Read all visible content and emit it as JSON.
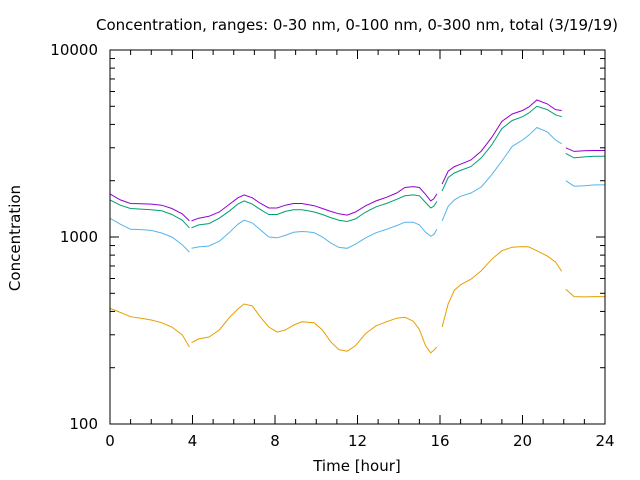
{
  "chart_data": {
    "type": "line",
    "title": "Concentration, ranges: 0-30 nm, 0-100 nm, 0-300 nm, total (3/19/19)",
    "xlabel": "Time [hour]",
    "ylabel": "Concentration",
    "xlim": [
      0,
      24
    ],
    "ylim": [
      100,
      10000
    ],
    "yscale": "log",
    "grid": false,
    "legend": "none",
    "xticks": [
      0,
      4,
      8,
      12,
      16,
      20,
      24
    ],
    "xtick_labels": [
      "0",
      "4",
      "8",
      "12",
      "16",
      "20",
      "24"
    ],
    "yticks": [
      100,
      1000,
      10000
    ],
    "ytick_labels": [
      "100",
      "1000",
      "10000"
    ],
    "series": [
      {
        "color": "#e69f00",
        "segments": [
          [
            [
              0,
              415
            ],
            [
              0.5,
              395
            ],
            [
              1,
              375
            ],
            [
              1.5,
              368
            ],
            [
              2,
              360
            ],
            [
              2.5,
              348
            ],
            [
              3,
              330
            ],
            [
              3.5,
              300
            ],
            [
              3.85,
              258
            ]
          ],
          [
            [
              3.95,
              272
            ],
            [
              4.3,
              285
            ],
            [
              4.8,
              292
            ],
            [
              5.3,
              318
            ],
            [
              5.8,
              372
            ],
            [
              6.2,
              412
            ],
            [
              6.5,
              438
            ],
            [
              6.9,
              428
            ],
            [
              7.3,
              372
            ],
            [
              7.7,
              330
            ],
            [
              8.1,
              310
            ],
            [
              8.5,
              318
            ],
            [
              8.9,
              338
            ],
            [
              9.3,
              352
            ],
            [
              9.6,
              350
            ],
            [
              9.9,
              348
            ],
            [
              10.3,
              318
            ],
            [
              10.7,
              275
            ],
            [
              11.1,
              250
            ],
            [
              11.5,
              245
            ],
            [
              11.9,
              262
            ],
            [
              12.4,
              305
            ],
            [
              12.9,
              335
            ],
            [
              13.4,
              352
            ],
            [
              13.9,
              368
            ],
            [
              14.3,
              372
            ],
            [
              14.7,
              355
            ],
            [
              15.0,
              320
            ],
            [
              15.3,
              262
            ],
            [
              15.55,
              240
            ],
            [
              15.7,
              248
            ],
            [
              15.85,
              258
            ]
          ],
          [
            [
              16.1,
              330
            ],
            [
              16.4,
              440
            ],
            [
              16.7,
              520
            ],
            [
              17.0,
              555
            ],
            [
              17.5,
              595
            ],
            [
              18.0,
              660
            ],
            [
              18.5,
              760
            ],
            [
              19.0,
              845
            ],
            [
              19.5,
              882
            ],
            [
              20.0,
              888
            ],
            [
              20.3,
              885
            ],
            [
              20.7,
              845
            ],
            [
              21.2,
              790
            ],
            [
              21.6,
              735
            ],
            [
              21.9,
              655
            ]
          ],
          [
            [
              22.1,
              525
            ],
            [
              22.5,
              480
            ],
            [
              23.0,
              478
            ],
            [
              23.5,
              480
            ],
            [
              24,
              480
            ]
          ]
        ]
      },
      {
        "color": "#56b4e9",
        "segments": [
          [
            [
              0,
              1260
            ],
            [
              0.5,
              1170
            ],
            [
              1,
              1100
            ],
            [
              1.5,
              1095
            ],
            [
              2,
              1085
            ],
            [
              2.5,
              1050
            ],
            [
              3,
              1000
            ],
            [
              3.5,
              910
            ],
            [
              3.85,
              830
            ]
          ],
          [
            [
              3.95,
              870
            ],
            [
              4.3,
              885
            ],
            [
              4.8,
              895
            ],
            [
              5.3,
              950
            ],
            [
              5.8,
              1060
            ],
            [
              6.2,
              1170
            ],
            [
              6.5,
              1230
            ],
            [
              6.9,
              1190
            ],
            [
              7.3,
              1090
            ],
            [
              7.7,
              1000
            ],
            [
              8.1,
              990
            ],
            [
              8.5,
              1020
            ],
            [
              8.9,
              1060
            ],
            [
              9.3,
              1070
            ],
            [
              9.6,
              1065
            ],
            [
              9.9,
              1055
            ],
            [
              10.3,
              1000
            ],
            [
              10.7,
              930
            ],
            [
              11.1,
              880
            ],
            [
              11.5,
              870
            ],
            [
              11.9,
              915
            ],
            [
              12.4,
              990
            ],
            [
              12.9,
              1055
            ],
            [
              13.4,
              1100
            ],
            [
              13.9,
              1150
            ],
            [
              14.3,
              1200
            ],
            [
              14.7,
              1200
            ],
            [
              15.0,
              1160
            ],
            [
              15.3,
              1060
            ],
            [
              15.55,
              1010
            ],
            [
              15.7,
              1030
            ],
            [
              15.85,
              1100
            ]
          ],
          [
            [
              16.1,
              1220
            ],
            [
              16.4,
              1460
            ],
            [
              16.7,
              1580
            ],
            [
              17.0,
              1650
            ],
            [
              17.5,
              1720
            ],
            [
              18.0,
              1850
            ],
            [
              18.5,
              2150
            ],
            [
              19.0,
              2550
            ],
            [
              19.5,
              3050
            ],
            [
              20.0,
              3300
            ],
            [
              20.3,
              3500
            ],
            [
              20.7,
              3850
            ],
            [
              21.2,
              3650
            ],
            [
              21.6,
              3300
            ],
            [
              21.9,
              3150
            ]
          ],
          [
            [
              22.1,
              2000
            ],
            [
              22.5,
              1870
            ],
            [
              23.0,
              1880
            ],
            [
              23.5,
              1900
            ],
            [
              24,
              1900
            ]
          ]
        ]
      },
      {
        "color": "#009e73",
        "segments": [
          [
            [
              0,
              1580
            ],
            [
              0.5,
              1480
            ],
            [
              1,
              1420
            ],
            [
              1.5,
              1410
            ],
            [
              2,
              1400
            ],
            [
              2.5,
              1380
            ],
            [
              3,
              1320
            ],
            [
              3.5,
              1230
            ],
            [
              3.85,
              1120
            ]
          ],
          [
            [
              3.95,
              1120
            ],
            [
              4.3,
              1160
            ],
            [
              4.8,
              1180
            ],
            [
              5.3,
              1260
            ],
            [
              5.8,
              1380
            ],
            [
              6.2,
              1500
            ],
            [
              6.5,
              1560
            ],
            [
              6.9,
              1500
            ],
            [
              7.3,
              1400
            ],
            [
              7.7,
              1320
            ],
            [
              8.1,
              1320
            ],
            [
              8.5,
              1370
            ],
            [
              8.9,
              1400
            ],
            [
              9.3,
              1400
            ],
            [
              9.6,
              1380
            ],
            [
              9.9,
              1360
            ],
            [
              10.3,
              1320
            ],
            [
              10.7,
              1270
            ],
            [
              11.1,
              1230
            ],
            [
              11.5,
              1210
            ],
            [
              11.9,
              1250
            ],
            [
              12.4,
              1360
            ],
            [
              12.9,
              1450
            ],
            [
              13.4,
              1510
            ],
            [
              13.9,
              1590
            ],
            [
              14.3,
              1660
            ],
            [
              14.7,
              1680
            ],
            [
              15.0,
              1660
            ],
            [
              15.3,
              1530
            ],
            [
              15.55,
              1430
            ],
            [
              15.7,
              1460
            ],
            [
              15.85,
              1550
            ]
          ],
          [
            [
              16.1,
              1760
            ],
            [
              16.4,
              2080
            ],
            [
              16.7,
              2200
            ],
            [
              17.0,
              2270
            ],
            [
              17.5,
              2380
            ],
            [
              18.0,
              2650
            ],
            [
              18.5,
              3100
            ],
            [
              19.0,
              3800
            ],
            [
              19.5,
              4200
            ],
            [
              20.0,
              4400
            ],
            [
              20.3,
              4600
            ],
            [
              20.7,
              5000
            ],
            [
              21.2,
              4800
            ],
            [
              21.6,
              4500
            ],
            [
              21.9,
              4400
            ]
          ],
          [
            [
              22.1,
              2800
            ],
            [
              22.5,
              2650
            ],
            [
              23.0,
              2680
            ],
            [
              23.5,
              2700
            ],
            [
              24,
              2700
            ]
          ]
        ]
      },
      {
        "color": "#9400d3",
        "segments": [
          [
            [
              0,
              1700
            ],
            [
              0.5,
              1580
            ],
            [
              1,
              1510
            ],
            [
              1.5,
              1505
            ],
            [
              2,
              1500
            ],
            [
              2.5,
              1480
            ],
            [
              3,
              1420
            ],
            [
              3.5,
              1330
            ],
            [
              3.85,
              1220
            ]
          ],
          [
            [
              3.95,
              1220
            ],
            [
              4.3,
              1260
            ],
            [
              4.8,
              1290
            ],
            [
              5.3,
              1360
            ],
            [
              5.8,
              1500
            ],
            [
              6.2,
              1620
            ],
            [
              6.5,
              1680
            ],
            [
              6.9,
              1620
            ],
            [
              7.3,
              1510
            ],
            [
              7.7,
              1430
            ],
            [
              8.1,
              1430
            ],
            [
              8.5,
              1480
            ],
            [
              8.9,
              1510
            ],
            [
              9.3,
              1510
            ],
            [
              9.6,
              1490
            ],
            [
              9.9,
              1470
            ],
            [
              10.3,
              1420
            ],
            [
              10.7,
              1370
            ],
            [
              11.1,
              1330
            ],
            [
              11.5,
              1310
            ],
            [
              11.9,
              1360
            ],
            [
              12.4,
              1470
            ],
            [
              12.9,
              1560
            ],
            [
              13.4,
              1630
            ],
            [
              13.9,
              1720
            ],
            [
              14.3,
              1840
            ],
            [
              14.7,
              1860
            ],
            [
              15.0,
              1840
            ],
            [
              15.3,
              1690
            ],
            [
              15.55,
              1560
            ],
            [
              15.7,
              1600
            ],
            [
              15.85,
              1700
            ]
          ],
          [
            [
              16.1,
              1920
            ],
            [
              16.4,
              2250
            ],
            [
              16.7,
              2380
            ],
            [
              17.0,
              2450
            ],
            [
              17.5,
              2580
            ],
            [
              18.0,
              2880
            ],
            [
              18.5,
              3400
            ],
            [
              19.0,
              4150
            ],
            [
              19.5,
              4550
            ],
            [
              20.0,
              4750
            ],
            [
              20.3,
              4950
            ],
            [
              20.7,
              5400
            ],
            [
              21.2,
              5150
            ],
            [
              21.6,
              4800
            ],
            [
              21.9,
              4750
            ]
          ],
          [
            [
              22.1,
              3000
            ],
            [
              22.5,
              2870
            ],
            [
              23.0,
              2890
            ],
            [
              23.5,
              2900
            ],
            [
              24,
              2900
            ]
          ]
        ]
      }
    ]
  }
}
